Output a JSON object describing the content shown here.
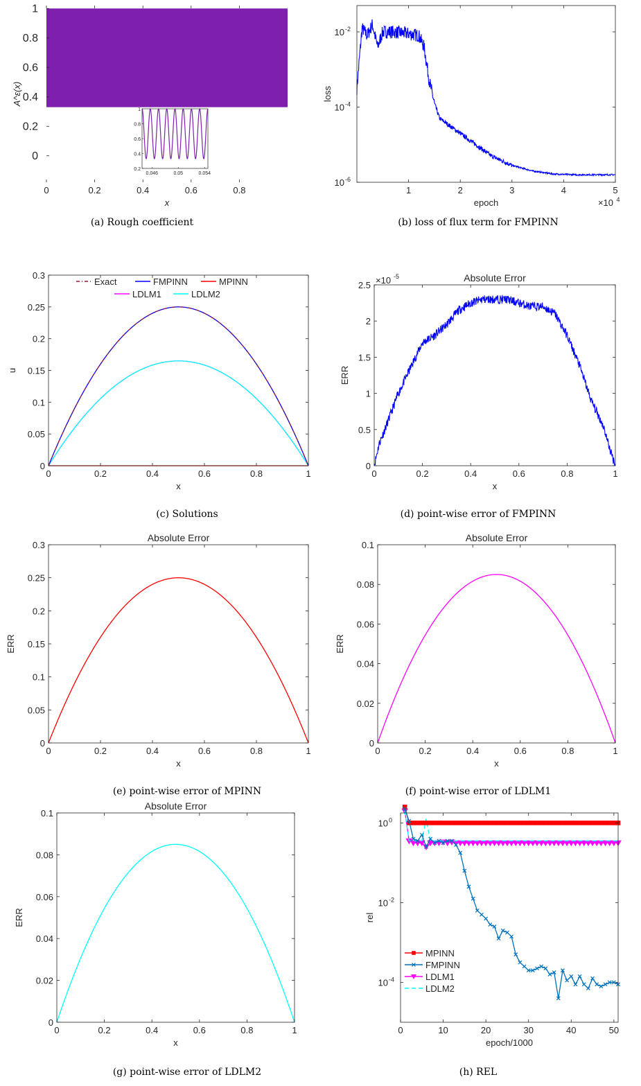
{
  "panels": [
    {
      "id": "a",
      "caption": "(a) Rough coefficient",
      "title": "",
      "xlabel": "x",
      "xlabel_italic": true,
      "ylabel": "A^ε(x)",
      "ylabel_italic": true,
      "xticks": [
        "0",
        "0.2",
        "0.4",
        "0.6",
        "0.8"
      ],
      "xtick_vals": [
        0,
        0.2,
        0.4,
        0.6,
        0.8
      ],
      "yticks": [
        "0",
        "0.2",
        "0.4",
        "0.6",
        "0.8",
        "1"
      ],
      "ytick_vals": [
        0,
        0.2,
        0.4,
        0.6,
        0.8,
        1
      ],
      "inset_xticks": [
        "0.046",
        "0.05",
        "0.054"
      ],
      "inset_yticks": [
        "0.2",
        "0.4",
        "0.6",
        "0.8",
        "1"
      ]
    },
    {
      "id": "b",
      "caption": "(b) loss of flux term for FMPINN",
      "title": "",
      "xlabel": "epoch",
      "ylabel": "loss",
      "xticks": [
        "1",
        "2",
        "3",
        "4",
        "5"
      ],
      "xtick_vals": [
        1,
        2,
        3,
        4,
        5
      ],
      "x_multiplier": "×10",
      "x_multiplier_exp": "4",
      "yticks": [
        [
          "10",
          "-6"
        ],
        [
          "10",
          "-4"
        ],
        [
          "10",
          "-2"
        ]
      ],
      "ytick_vals": [
        -6,
        -4,
        -2
      ]
    },
    {
      "id": "c",
      "caption": "(c) Solutions",
      "title": "",
      "xlabel": "x",
      "ylabel": "u",
      "xticks": [
        "0",
        "0.2",
        "0.4",
        "0.6",
        "0.8",
        "1"
      ],
      "xtick_vals": [
        0,
        0.2,
        0.4,
        0.6,
        0.8,
        1
      ],
      "yticks": [
        "0",
        "0.05",
        "0.1",
        "0.15",
        "0.2",
        "0.25",
        "0.3"
      ],
      "ytick_vals": [
        0,
        0.05,
        0.1,
        0.15,
        0.2,
        0.25,
        0.3
      ],
      "legend": [
        {
          "name": "Exact",
          "color": "#a2142f",
          "dash": "5,3,1,3"
        },
        {
          "name": "FMPINN",
          "color": "#0000ff",
          "dash": ""
        },
        {
          "name": "MPINN",
          "color": "#ff0000",
          "dash": ""
        },
        {
          "name": "LDLM1",
          "color": "#ff00ff",
          "dash": ""
        },
        {
          "name": "LDLM2",
          "color": "#00ffff",
          "dash": ""
        }
      ]
    },
    {
      "id": "d",
      "caption": "(d) point-wise error of FMPINN",
      "title": "Absolute Error",
      "xlabel": "x",
      "ylabel": "ERR",
      "xticks": [
        "0",
        "0.2",
        "0.4",
        "0.6",
        "0.8",
        "1"
      ],
      "xtick_vals": [
        0,
        0.2,
        0.4,
        0.6,
        0.8,
        1
      ],
      "yticks": [
        "0",
        "0.5",
        "1",
        "1.5",
        "2",
        "2.5"
      ],
      "ytick_vals": [
        0,
        0.5,
        1,
        1.5,
        2,
        2.5
      ],
      "y_multiplier": "×10",
      "y_multiplier_exp": "-5"
    },
    {
      "id": "e",
      "caption": "(e) point-wise error of MPINN",
      "title": "Absolute Error",
      "xlabel": "x",
      "ylabel": "ERR",
      "xticks": [
        "0",
        "0.2",
        "0.4",
        "0.6",
        "0.8",
        "1"
      ],
      "xtick_vals": [
        0,
        0.2,
        0.4,
        0.6,
        0.8,
        1
      ],
      "yticks": [
        "0",
        "0.05",
        "0.1",
        "0.15",
        "0.2",
        "0.25",
        "0.3"
      ],
      "ytick_vals": [
        0,
        0.05,
        0.1,
        0.15,
        0.2,
        0.25,
        0.3
      ]
    },
    {
      "id": "f",
      "caption": "(f) point-wise error of LDLM1",
      "title": "Absolute Error",
      "xlabel": "x",
      "ylabel": "ERR",
      "xticks": [
        "0",
        "0.2",
        "0.4",
        "0.6",
        "0.8",
        "1"
      ],
      "xtick_vals": [
        0,
        0.2,
        0.4,
        0.6,
        0.8,
        1
      ],
      "yticks": [
        "0",
        "0.02",
        "0.04",
        "0.06",
        "0.08",
        "0.1"
      ],
      "ytick_vals": [
        0,
        0.02,
        0.04,
        0.06,
        0.08,
        0.1
      ]
    },
    {
      "id": "g",
      "caption": "(g) point-wise error of LDLM2",
      "title": "Absolute Error",
      "xlabel": "x",
      "ylabel": "ERR",
      "xticks": [
        "0",
        "0.2",
        "0.4",
        "0.6",
        "0.8",
        "1"
      ],
      "xtick_vals": [
        0,
        0.2,
        0.4,
        0.6,
        0.8,
        1
      ],
      "yticks": [
        "0",
        "0.02",
        "0.04",
        "0.06",
        "0.08",
        "0.1"
      ],
      "ytick_vals": [
        0,
        0.02,
        0.04,
        0.06,
        0.08,
        0.1
      ]
    },
    {
      "id": "h",
      "caption": "(h) REL",
      "title": "",
      "xlabel": "epoch/1000",
      "ylabel": "rel",
      "xticks": [
        "0",
        "10",
        "20",
        "30",
        "40",
        "50"
      ],
      "xtick_vals": [
        0,
        10,
        20,
        30,
        40,
        50
      ],
      "yticks": [
        [
          "10",
          "-4"
        ],
        [
          "10",
          "-2"
        ],
        [
          "10",
          "0"
        ]
      ],
      "ytick_vals": [
        -4,
        -2,
        0
      ],
      "legend": [
        {
          "name": "MPINN",
          "color": "#ff0000",
          "marker": "square",
          "dash": ""
        },
        {
          "name": "FMPINN",
          "color": "#0072bd",
          "marker": "x",
          "dash": ""
        },
        {
          "name": "LDLM1",
          "color": "#ff00ff",
          "marker": "triangle",
          "dash": ""
        },
        {
          "name": "LDLM2",
          "color": "#00ffff",
          "marker": "none",
          "dash": "6,4"
        }
      ]
    }
  ],
  "chart_data": [
    {
      "panel": "a",
      "type": "line",
      "title": "",
      "xlabel": "x",
      "ylabel": "A^ε(x)",
      "xlim": [
        0,
        1
      ],
      "ylim": [
        -0.18,
        1.02
      ],
      "series": [
        {
          "color": "#7e1fb0",
          "band": [
            0.33,
            1.0
          ],
          "x_range": [
            0,
            1
          ]
        }
      ],
      "inset": {
        "xlim": [
          0.0445,
          0.0545
        ],
        "ylim": [
          0.2,
          1.0
        ],
        "period": 0.00125,
        "x_range": [
          0.0445,
          0.0545
        ],
        "min": 0.33,
        "max": 1.0
      }
    },
    {
      "panel": "b",
      "type": "line",
      "scale_y": "log",
      "title": "",
      "xlabel": "epoch",
      "ylabel": "loss",
      "xlim": [
        0,
        50000
      ],
      "ylim_log10": [
        -6,
        -1.3
      ],
      "series": [
        {
          "color": "#0000ff",
          "x": [
            0,
            1000,
            2000,
            3000,
            4000,
            5000,
            7000,
            10000,
            12000,
            13000,
            14000,
            15000,
            16000,
            18000,
            20000,
            23000,
            26000,
            30000,
            34000,
            38000,
            42000,
            45000,
            50000
          ],
          "log10_y": [
            -3.5,
            -1.9,
            -2.1,
            -1.8,
            -2.4,
            -2.0,
            -2.0,
            -2.05,
            -2.1,
            -2.4,
            -3.3,
            -3.9,
            -4.3,
            -4.5,
            -4.7,
            -5.0,
            -5.3,
            -5.55,
            -5.7,
            -5.78,
            -5.8,
            -5.8,
            -5.8
          ]
        }
      ]
    },
    {
      "panel": "c",
      "type": "line",
      "title": "",
      "xlabel": "x",
      "ylabel": "u",
      "xlim": [
        0,
        1
      ],
      "ylim": [
        0,
        0.3
      ],
      "series": [
        {
          "name": "Exact",
          "color": "#a2142f",
          "peak": 0.25
        },
        {
          "name": "FMPINN",
          "color": "#0000ff",
          "peak": 0.25
        },
        {
          "name": "MPINN",
          "color": "#ff0000",
          "peak": 0.0
        },
        {
          "name": "LDLM1",
          "color": "#ff00ff",
          "peak": 0.165
        },
        {
          "name": "LDLM2",
          "color": "#00ffff",
          "peak": 0.165
        }
      ]
    },
    {
      "panel": "d",
      "type": "line",
      "title": "Absolute Error",
      "xlabel": "x",
      "ylabel": "ERR",
      "xlim": [
        0,
        1
      ],
      "ylim": [
        0,
        2.5
      ],
      "y_scale_factor": "1e-5",
      "series": [
        {
          "color": "#0000ff",
          "x": [
            0,
            0.02,
            0.05,
            0.1,
            0.15,
            0.2,
            0.25,
            0.3,
            0.35,
            0.4,
            0.45,
            0.5,
            0.55,
            0.6,
            0.65,
            0.7,
            0.75,
            0.8,
            0.85,
            0.9,
            0.95,
            0.98,
            1.0
          ],
          "y": [
            0,
            0.3,
            0.55,
            1.0,
            1.35,
            1.7,
            1.8,
            1.95,
            2.15,
            2.25,
            2.3,
            2.3,
            2.3,
            2.25,
            2.2,
            2.2,
            2.1,
            1.8,
            1.4,
            0.9,
            0.55,
            0.2,
            0
          ]
        }
      ]
    },
    {
      "panel": "e",
      "type": "line",
      "title": "Absolute Error",
      "xlabel": "x",
      "ylabel": "ERR",
      "xlim": [
        0,
        1
      ],
      "ylim": [
        0,
        0.3
      ],
      "series": [
        {
          "color": "#ff0000",
          "peak": 0.25
        }
      ]
    },
    {
      "panel": "f",
      "type": "line",
      "title": "Absolute Error",
      "xlabel": "x",
      "ylabel": "ERR",
      "xlim": [
        0,
        1
      ],
      "ylim": [
        0,
        0.1
      ],
      "series": [
        {
          "color": "#ff00ff",
          "peak": 0.085
        }
      ]
    },
    {
      "panel": "g",
      "type": "line",
      "title": "Absolute Error",
      "xlabel": "x",
      "ylabel": "ERR",
      "xlim": [
        0,
        1
      ],
      "ylim": [
        0,
        0.1
      ],
      "series": [
        {
          "color": "#00ffff",
          "peak": 0.085
        }
      ]
    },
    {
      "panel": "h",
      "type": "line",
      "scale_y": "log",
      "title": "",
      "xlabel": "epoch/1000",
      "ylabel": "rel",
      "xlim": [
        0,
        51
      ],
      "ylim_log10": [
        -5,
        0.25
      ],
      "series": [
        {
          "name": "MPINN",
          "color": "#ff0000",
          "marker": "square",
          "x": [
            1,
            2,
            3,
            4,
            5,
            6,
            7,
            8,
            9,
            10,
            11,
            12,
            13,
            14,
            15,
            16,
            17,
            18,
            19,
            20,
            21,
            22,
            23,
            24,
            25,
            26,
            27,
            28,
            29,
            30,
            31,
            32,
            33,
            34,
            35,
            36,
            37,
            38,
            39,
            40,
            41,
            42,
            43,
            44,
            45,
            46,
            47,
            48,
            49,
            50,
            51
          ],
          "log10_y": [
            0.4,
            0.0,
            0.0,
            0.0,
            0.0,
            0.0,
            0.0,
            0.0,
            0.0,
            0.0,
            0.0,
            0.0,
            0.0,
            0.0,
            0.0,
            0.0,
            0.0,
            0.0,
            0.0,
            0.0,
            0.0,
            0.0,
            0.0,
            0.0,
            0.0,
            0.0,
            0.0,
            0.0,
            0.0,
            0.0,
            0.0,
            0.0,
            0.0,
            0.0,
            0.0,
            0.0,
            0.0,
            0.0,
            0.0,
            0.0,
            0.0,
            0.0,
            0.0,
            0.0,
            0.0,
            0.0,
            0.0,
            0.0,
            0.0,
            0.0,
            0.0
          ]
        },
        {
          "name": "FMPINN",
          "color": "#0072bd",
          "marker": "x",
          "x": [
            1,
            2,
            3,
            4,
            5,
            6,
            7,
            8,
            9,
            10,
            11,
            12,
            13,
            14,
            15,
            16,
            17,
            18,
            19,
            20,
            21,
            22,
            23,
            24,
            25,
            26,
            27,
            28,
            29,
            30,
            31,
            32,
            33,
            34,
            35,
            36,
            37,
            38,
            39,
            40,
            41,
            42,
            43,
            44,
            45,
            46,
            47,
            48,
            49,
            50,
            51
          ],
          "log10_y": [
            0.35,
            0.05,
            -0.4,
            -0.45,
            -0.3,
            -0.6,
            -0.4,
            -0.5,
            -0.45,
            -0.5,
            -0.45,
            -0.45,
            -0.55,
            -0.75,
            -1.2,
            -1.6,
            -1.9,
            -2.2,
            -2.3,
            -2.4,
            -2.55,
            -2.6,
            -2.9,
            -2.7,
            -2.75,
            -2.85,
            -3.3,
            -3.5,
            -3.6,
            -3.7,
            -3.7,
            -3.65,
            -3.6,
            -3.65,
            -3.8,
            -3.75,
            -4.4,
            -3.7,
            -3.95,
            -3.85,
            -4.05,
            -3.85,
            -4.05,
            -4.15,
            -3.9,
            -4.05,
            -4.1,
            -4.05,
            -4.0,
            -4.0,
            -4.05
          ]
        },
        {
          "name": "LDLM1",
          "color": "#ff00ff",
          "marker": "triangle",
          "x": [
            1,
            2,
            3,
            4,
            5,
            6,
            7,
            8,
            9,
            10,
            11,
            12,
            13,
            14,
            15,
            16,
            17,
            18,
            19,
            20,
            21,
            22,
            23,
            24,
            25,
            26,
            27,
            28,
            29,
            30,
            31,
            32,
            33,
            34,
            35,
            36,
            37,
            38,
            39,
            40,
            41,
            42,
            43,
            44,
            45,
            46,
            47,
            48,
            49,
            50,
            51
          ],
          "log10_y": [
            0.3,
            -0.45,
            -0.5,
            -0.5,
            -0.5,
            -0.6,
            -0.5,
            -0.5,
            -0.5,
            -0.48,
            -0.5,
            -0.48,
            -0.5,
            -0.5,
            -0.5,
            -0.5,
            -0.5,
            -0.5,
            -0.5,
            -0.5,
            -0.5,
            -0.5,
            -0.5,
            -0.5,
            -0.5,
            -0.5,
            -0.5,
            -0.5,
            -0.5,
            -0.5,
            -0.5,
            -0.5,
            -0.5,
            -0.5,
            -0.5,
            -0.5,
            -0.5,
            -0.5,
            -0.5,
            -0.5,
            -0.5,
            -0.5,
            -0.5,
            -0.5,
            -0.5,
            -0.5,
            -0.5,
            -0.5,
            -0.5,
            -0.5,
            -0.5
          ]
        },
        {
          "name": "LDLM2",
          "color": "#00ffff",
          "marker": "none",
          "x": [
            1,
            2,
            3,
            4,
            5,
            6,
            7,
            8,
            10,
            15,
            20,
            25,
            30,
            35,
            40,
            45,
            51
          ],
          "log10_y": [
            0.3,
            -0.45,
            -0.45,
            -0.45,
            -0.45,
            0.1,
            -0.45,
            -0.45,
            -0.45,
            -0.45,
            -0.45,
            -0.45,
            -0.45,
            -0.45,
            -0.45,
            -0.45,
            -0.45
          ]
        }
      ]
    }
  ]
}
